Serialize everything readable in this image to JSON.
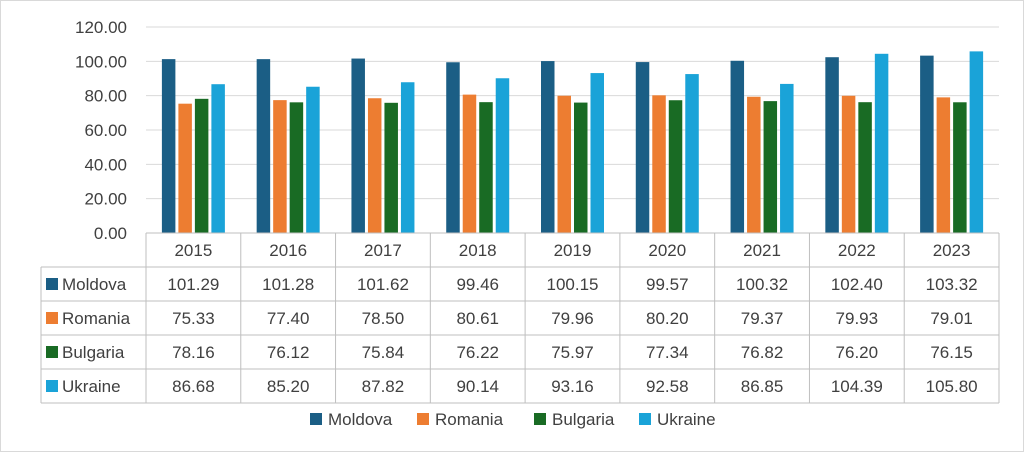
{
  "chart_data": {
    "type": "bar",
    "categories": [
      "2015",
      "2016",
      "2017",
      "2018",
      "2019",
      "2020",
      "2021",
      "2022",
      "2023"
    ],
    "series": [
      {
        "name": "Moldova",
        "color": "#1b5e85",
        "values": [
          101.29,
          101.28,
          101.62,
          99.46,
          100.15,
          99.57,
          100.32,
          102.4,
          103.32
        ],
        "labels": [
          "101.29",
          "101.28",
          "101.62",
          "99.46",
          "100.15",
          "99.57",
          "100.32",
          "102.40",
          "103.32"
        ]
      },
      {
        "name": "Romania",
        "color": "#ed7d31",
        "values": [
          75.33,
          77.4,
          78.5,
          80.61,
          79.96,
          80.2,
          79.37,
          79.93,
          79.01
        ],
        "labels": [
          "75.33",
          "77.40",
          "78.50",
          "80.61",
          "79.96",
          "80.20",
          "79.37",
          "79.93",
          "79.01"
        ]
      },
      {
        "name": "Bulgaria",
        "color": "#196b24",
        "values": [
          78.16,
          76.12,
          75.84,
          76.22,
          75.97,
          77.34,
          76.82,
          76.2,
          76.15
        ],
        "labels": [
          "78.16",
          "76.12",
          "75.84",
          "76.22",
          "75.97",
          "77.34",
          "76.82",
          "76.20",
          "76.15"
        ]
      },
      {
        "name": "Ukraine",
        "color": "#1aa3d8",
        "values": [
          86.68,
          85.2,
          87.82,
          90.14,
          93.16,
          92.58,
          86.85,
          104.39,
          105.8
        ],
        "labels": [
          "86.68",
          "85.20",
          "87.82",
          "90.14",
          "93.16",
          "92.58",
          "86.85",
          "104.39",
          "105.80"
        ]
      }
    ],
    "ylim": [
      0,
      120
    ],
    "yticks": [
      "0.00",
      "20.00",
      "40.00",
      "60.00",
      "80.00",
      "100.00",
      "120.00"
    ],
    "grid": true,
    "legend_position": "bottom",
    "data_table": true
  }
}
